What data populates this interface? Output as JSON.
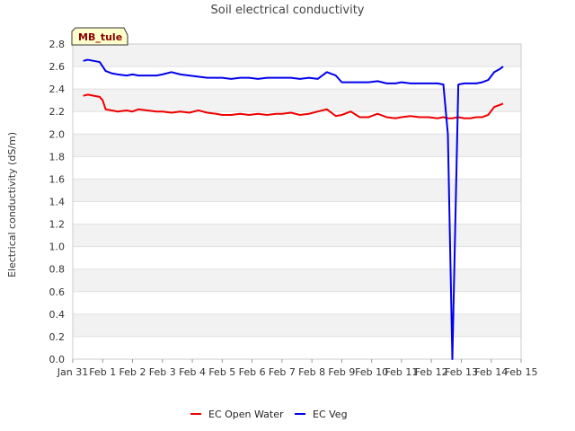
{
  "chart_data": {
    "type": "line",
    "title": "Soil electrical conductivity",
    "ylabel": "Electrical conductivity (dS/m)",
    "xlabel": "",
    "site_label": "MB_tule",
    "ylim": [
      0.0,
      2.8
    ],
    "yticks": [
      "0.0",
      "0.2",
      "0.4",
      "0.6",
      "0.8",
      "1.0",
      "1.2",
      "1.4",
      "1.6",
      "1.8",
      "2.0",
      "2.2",
      "2.4",
      "2.6",
      "2.8"
    ],
    "xlim": [
      0,
      15
    ],
    "xticks": [
      "Jan 31",
      "Feb 1",
      "Feb 2",
      "Feb 3",
      "Feb 4",
      "Feb 5",
      "Feb 6",
      "Feb 7",
      "Feb 8",
      "Feb 9",
      "Feb 10",
      "Feb 11",
      "Feb 12",
      "Feb 13",
      "Feb 14",
      "Feb 15"
    ],
    "grid": "horizontal alternating bands",
    "legend_position": "bottom-center",
    "series": [
      {
        "name": "EC Open Water",
        "color": "#ee0000",
        "x": [
          0.35,
          0.5,
          0.7,
          0.9,
          1.0,
          1.1,
          1.3,
          1.5,
          1.8,
          2.0,
          2.2,
          2.5,
          2.8,
          3.0,
          3.3,
          3.6,
          3.9,
          4.2,
          4.5,
          4.8,
          5.0,
          5.3,
          5.6,
          5.9,
          6.2,
          6.5,
          6.8,
          7.0,
          7.3,
          7.6,
          7.9,
          8.2,
          8.5,
          8.8,
          9.0,
          9.3,
          9.6,
          9.9,
          10.2,
          10.5,
          10.8,
          11.0,
          11.3,
          11.6,
          11.9,
          12.2,
          12.4,
          12.55,
          12.7,
          12.9,
          13.1,
          13.3,
          13.5,
          13.7,
          13.9,
          14.1,
          14.3,
          14.4
        ],
        "y": [
          2.34,
          2.35,
          2.34,
          2.33,
          2.3,
          2.22,
          2.21,
          2.2,
          2.21,
          2.2,
          2.22,
          2.21,
          2.2,
          2.2,
          2.19,
          2.2,
          2.19,
          2.21,
          2.19,
          2.18,
          2.17,
          2.17,
          2.18,
          2.17,
          2.18,
          2.17,
          2.18,
          2.18,
          2.19,
          2.17,
          2.18,
          2.2,
          2.22,
          2.16,
          2.17,
          2.2,
          2.15,
          2.15,
          2.18,
          2.15,
          2.14,
          2.15,
          2.16,
          2.15,
          2.15,
          2.14,
          2.15,
          2.14,
          2.14,
          2.15,
          2.14,
          2.14,
          2.15,
          2.15,
          2.17,
          2.24,
          2.26,
          2.27
        ]
      },
      {
        "name": "EC Veg",
        "color": "#0000ee",
        "x": [
          0.35,
          0.5,
          0.7,
          0.9,
          1.0,
          1.1,
          1.3,
          1.5,
          1.8,
          2.0,
          2.2,
          2.5,
          2.8,
          3.0,
          3.3,
          3.6,
          3.9,
          4.2,
          4.5,
          4.8,
          5.0,
          5.3,
          5.6,
          5.9,
          6.2,
          6.5,
          6.8,
          7.0,
          7.3,
          7.6,
          7.9,
          8.2,
          8.5,
          8.8,
          9.0,
          9.3,
          9.6,
          9.9,
          10.2,
          10.5,
          10.8,
          11.0,
          11.3,
          11.6,
          11.9,
          12.2,
          12.4,
          12.55,
          12.7,
          12.9,
          13.1,
          13.3,
          13.5,
          13.7,
          13.9,
          14.1,
          14.3,
          14.4
        ],
        "y": [
          2.65,
          2.66,
          2.65,
          2.64,
          2.6,
          2.56,
          2.54,
          2.53,
          2.52,
          2.53,
          2.52,
          2.52,
          2.52,
          2.53,
          2.55,
          2.53,
          2.52,
          2.51,
          2.5,
          2.5,
          2.5,
          2.49,
          2.5,
          2.5,
          2.49,
          2.5,
          2.5,
          2.5,
          2.5,
          2.49,
          2.5,
          2.49,
          2.55,
          2.52,
          2.46,
          2.46,
          2.46,
          2.46,
          2.47,
          2.45,
          2.45,
          2.46,
          2.45,
          2.45,
          2.45,
          2.45,
          2.44,
          2.0,
          0.0,
          2.44,
          2.45,
          2.45,
          2.45,
          2.46,
          2.48,
          2.55,
          2.58,
          2.6
        ]
      }
    ]
  }
}
